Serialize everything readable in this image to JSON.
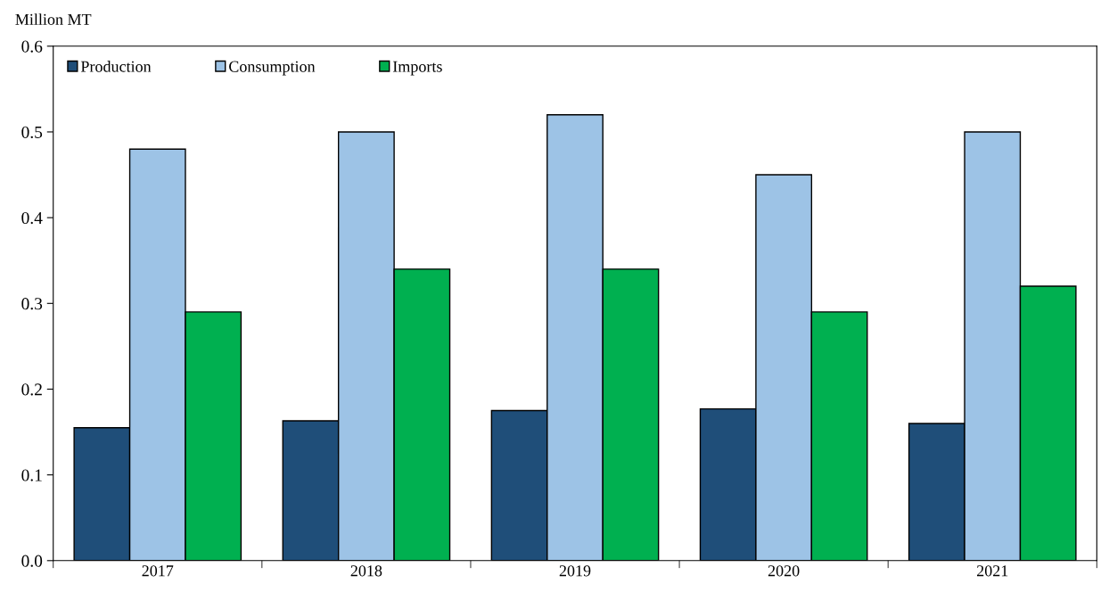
{
  "chart_data": {
    "type": "bar",
    "ylabel": "Million MT",
    "categories": [
      "2017",
      "2018",
      "2019",
      "2020",
      "2021"
    ],
    "series": [
      {
        "name": "Production",
        "color": "#1f4e79",
        "values": [
          0.155,
          0.163,
          0.175,
          0.177,
          0.16
        ]
      },
      {
        "name": "Consumption",
        "color": "#9dc3e6",
        "values": [
          0.48,
          0.5,
          0.52,
          0.45,
          0.5
        ]
      },
      {
        "name": "Imports",
        "color": "#00b050",
        "values": [
          0.29,
          0.34,
          0.34,
          0.29,
          0.32
        ]
      }
    ],
    "ylim": [
      0,
      0.6
    ],
    "yticks": [
      {
        "value": 0,
        "label": "0.0"
      },
      0.1,
      0.2,
      0.3,
      0.4,
      0.5,
      0.6
    ],
    "grid": false,
    "legend": "top left"
  }
}
